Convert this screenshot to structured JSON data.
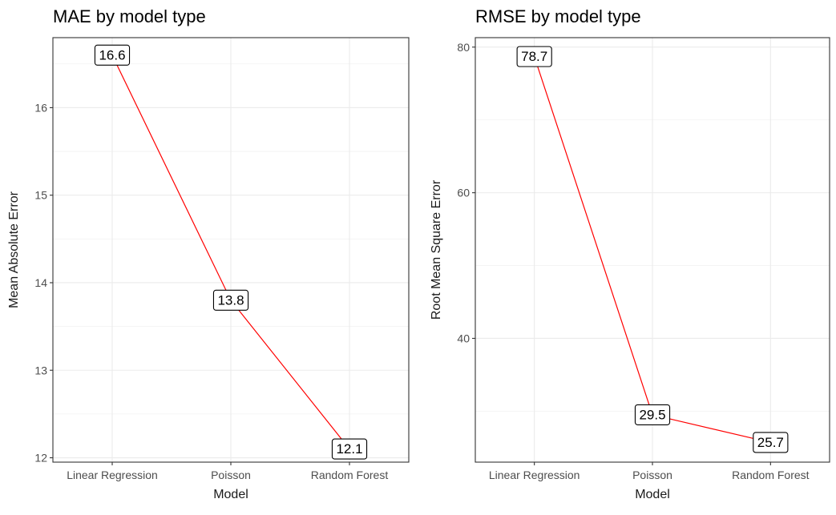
{
  "chart_data": [
    {
      "type": "line",
      "title": "MAE by model type",
      "xlabel": "Model",
      "ylabel": "Mean Absolute Error",
      "categories": [
        "Linear Regression",
        "Poisson",
        "Random Forest"
      ],
      "values": [
        16.6,
        13.8,
        12.1
      ],
      "labels": [
        "16.6",
        "13.8",
        "12.1"
      ],
      "yticks": [
        12,
        13,
        14,
        15,
        16
      ],
      "ylim": [
        11.95,
        16.8
      ],
      "grid": true,
      "line_color": "#ff0000"
    },
    {
      "type": "line",
      "title": "RMSE by model type",
      "xlabel": "Model",
      "ylabel": "Root Mean Square Error",
      "categories": [
        "Linear Regression",
        "Poisson",
        "Random Forest"
      ],
      "values": [
        78.7,
        29.5,
        25.7
      ],
      "labels": [
        "78.7",
        "29.5",
        "25.7"
      ],
      "yticks": [
        40,
        60,
        80
      ],
      "ylim": [
        23.0,
        81.3
      ],
      "grid": true,
      "line_color": "#ff0000"
    }
  ]
}
